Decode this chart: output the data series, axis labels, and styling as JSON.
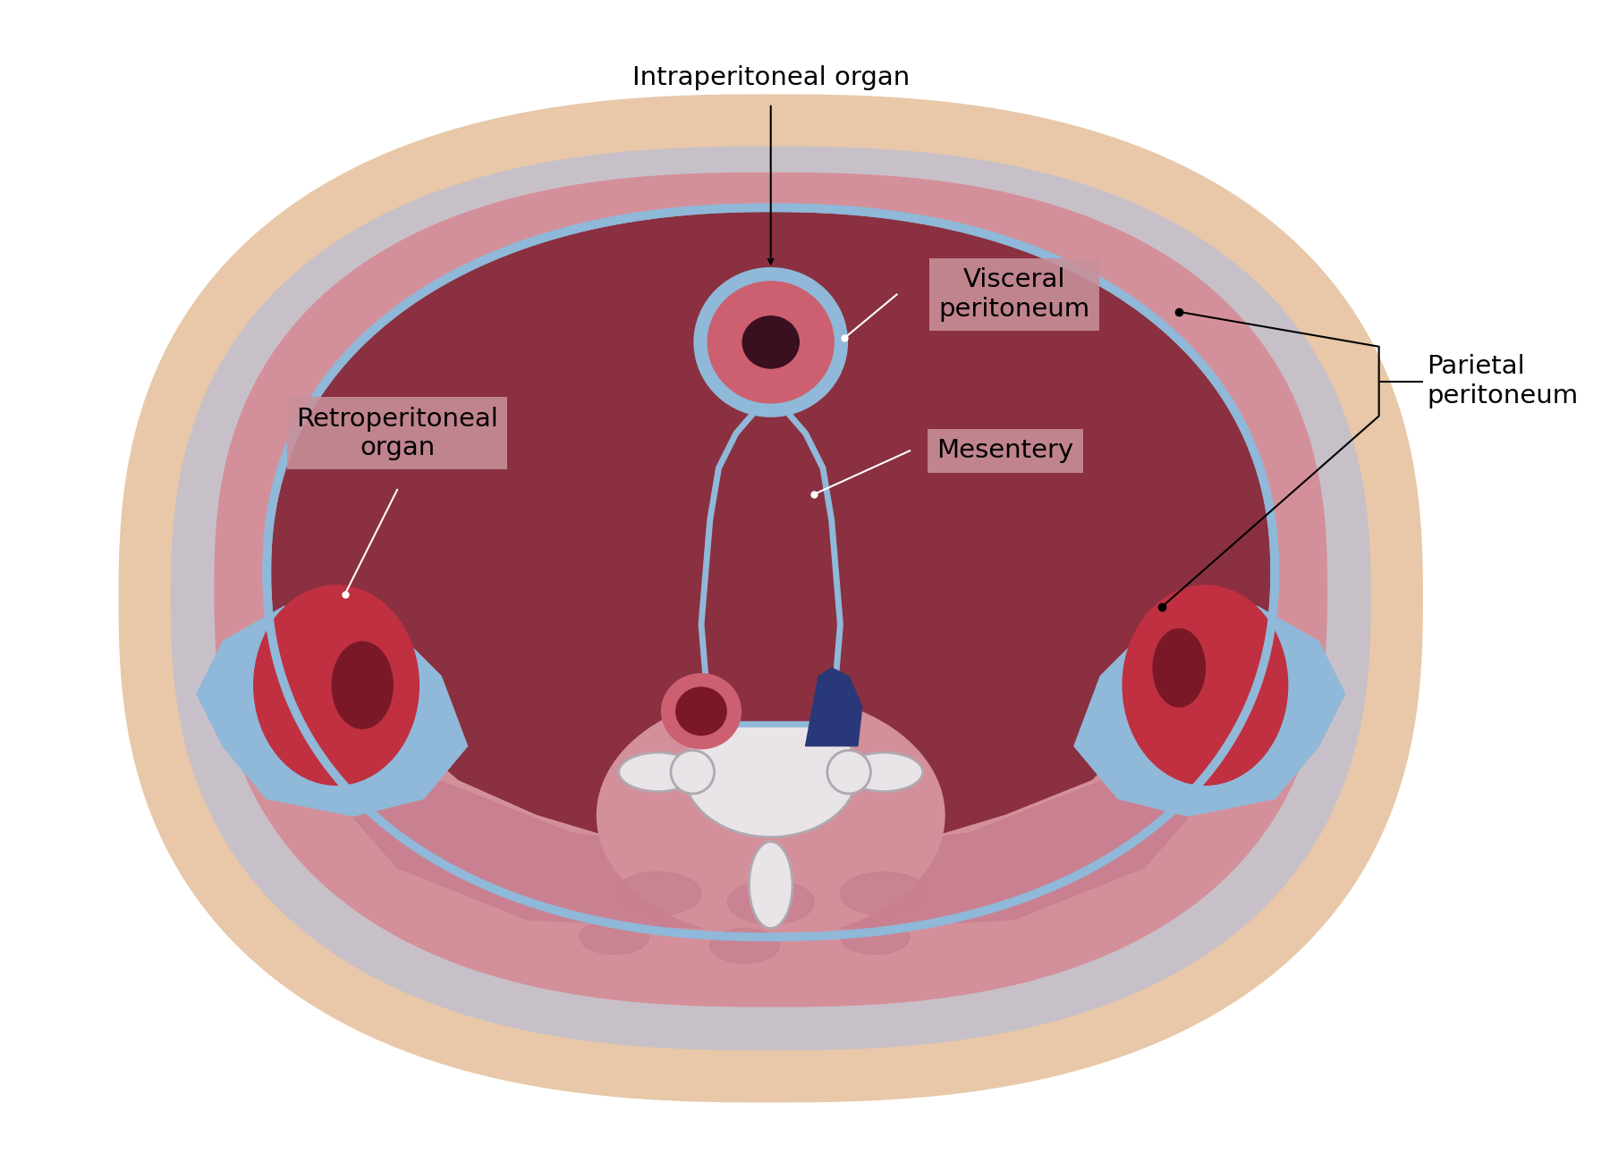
{
  "bg_color": "#ffffff",
  "outer_skin_color": "#e8c8a8",
  "gray_fascia_color": "#c8c0c8",
  "muscle_color": "#d4909a",
  "cavity_color": "#8a3040",
  "peritoneum_blue": "#90b8d8",
  "organ_red": "#c03040",
  "organ_dark": "#7a1828",
  "organ_light_red": "#cc6070",
  "spine_white": "#e8e4e8",
  "spine_gray": "#b0a8b0",
  "blue_vessel": "#283878",
  "label_box_color": "#c8909a",
  "labels": {
    "intraperitoneal": "Intraperitoneal organ",
    "visceral": "Visceral\nperitoneum",
    "mesentery": "Mesentery",
    "retroperitoneal": "Retroperitoneal\norgan",
    "parietal": "Parietal\nperitoneum"
  },
  "font_size": 21
}
